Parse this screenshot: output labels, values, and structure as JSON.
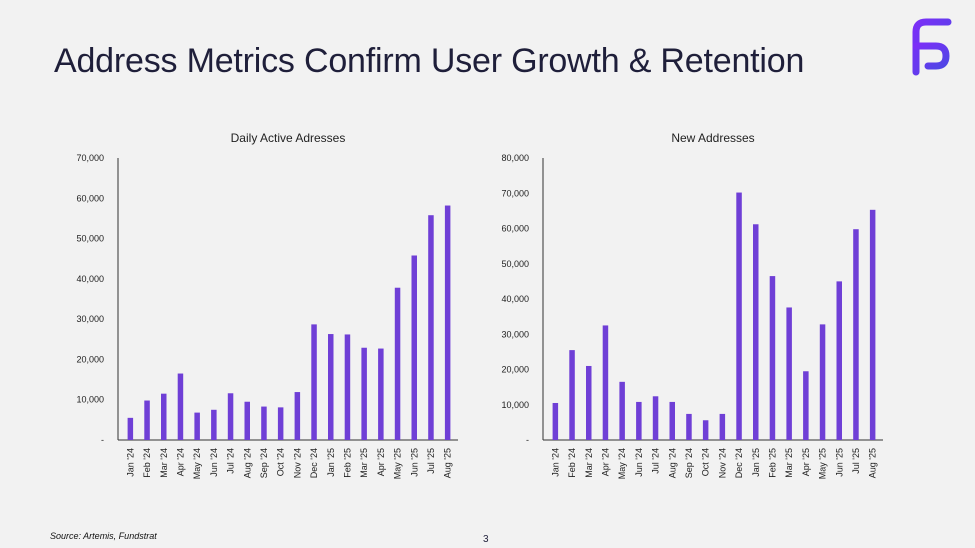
{
  "page": {
    "title": "Address Metrics Confirm User Growth & Retention",
    "source": "Source: Artemis, Fundstrat",
    "page_number": "3"
  },
  "colors": {
    "bar": "#6f3fd6",
    "axis": "#333333",
    "logo_gradient_start": "#7b2ff7",
    "logo_gradient_end": "#4f46e5"
  },
  "chart_data": [
    {
      "type": "bar",
      "title": "Daily Active Adresses",
      "categories": [
        "Jan '24",
        "Feb '24",
        "Mar '24",
        "Apr '24",
        "May '24",
        "Jun '24",
        "Jul '24",
        "Aug '24",
        "Sep '24",
        "Oct '24",
        "Nov '24",
        "Dec '24",
        "Jan '25",
        "Feb '25",
        "Mar '25",
        "Apr '25",
        "May '25",
        "Jun '25",
        "Jul '25",
        "Aug '25"
      ],
      "values": [
        5500,
        9800,
        11500,
        16500,
        6800,
        7500,
        11600,
        9500,
        8300,
        8100,
        11900,
        28700,
        26300,
        26200,
        22900,
        22700,
        37800,
        45800,
        55800,
        58200
      ],
      "ylim": [
        0,
        70000
      ],
      "yticks": [
        0,
        10000,
        20000,
        30000,
        40000,
        50000,
        60000,
        70000
      ],
      "ytick_labels": [
        "-",
        "10,000",
        "20,000",
        "30,000",
        "40,000",
        "50,000",
        "60,000",
        "70,000"
      ],
      "xlabel": "",
      "ylabel": ""
    },
    {
      "type": "bar",
      "title": "New Addresses",
      "categories": [
        "Jan '24",
        "Feb '24",
        "Mar '24",
        "Apr '24",
        "May '24",
        "Jun '24",
        "Jul '24",
        "Aug '24",
        "Sep '24",
        "Oct '24",
        "Nov '24",
        "Dec '24",
        "Jan '25",
        "Feb '25",
        "Mar '25",
        "Apr '25",
        "May '25",
        "Jun '25",
        "Jul '25",
        "Aug '25"
      ],
      "values": [
        10500,
        25500,
        21000,
        32500,
        16500,
        10800,
        12400,
        10800,
        7400,
        5600,
        7400,
        70200,
        61200,
        46500,
        37600,
        19500,
        32800,
        45000,
        59800,
        65300
      ],
      "ylim": [
        0,
        80000
      ],
      "yticks": [
        0,
        10000,
        20000,
        30000,
        40000,
        50000,
        60000,
        70000,
        80000
      ],
      "ytick_labels": [
        "-",
        "10,000",
        "20,000",
        "30,000",
        "40,000",
        "50,000",
        "60,000",
        "70,000",
        "80,000"
      ],
      "xlabel": "",
      "ylabel": ""
    }
  ]
}
